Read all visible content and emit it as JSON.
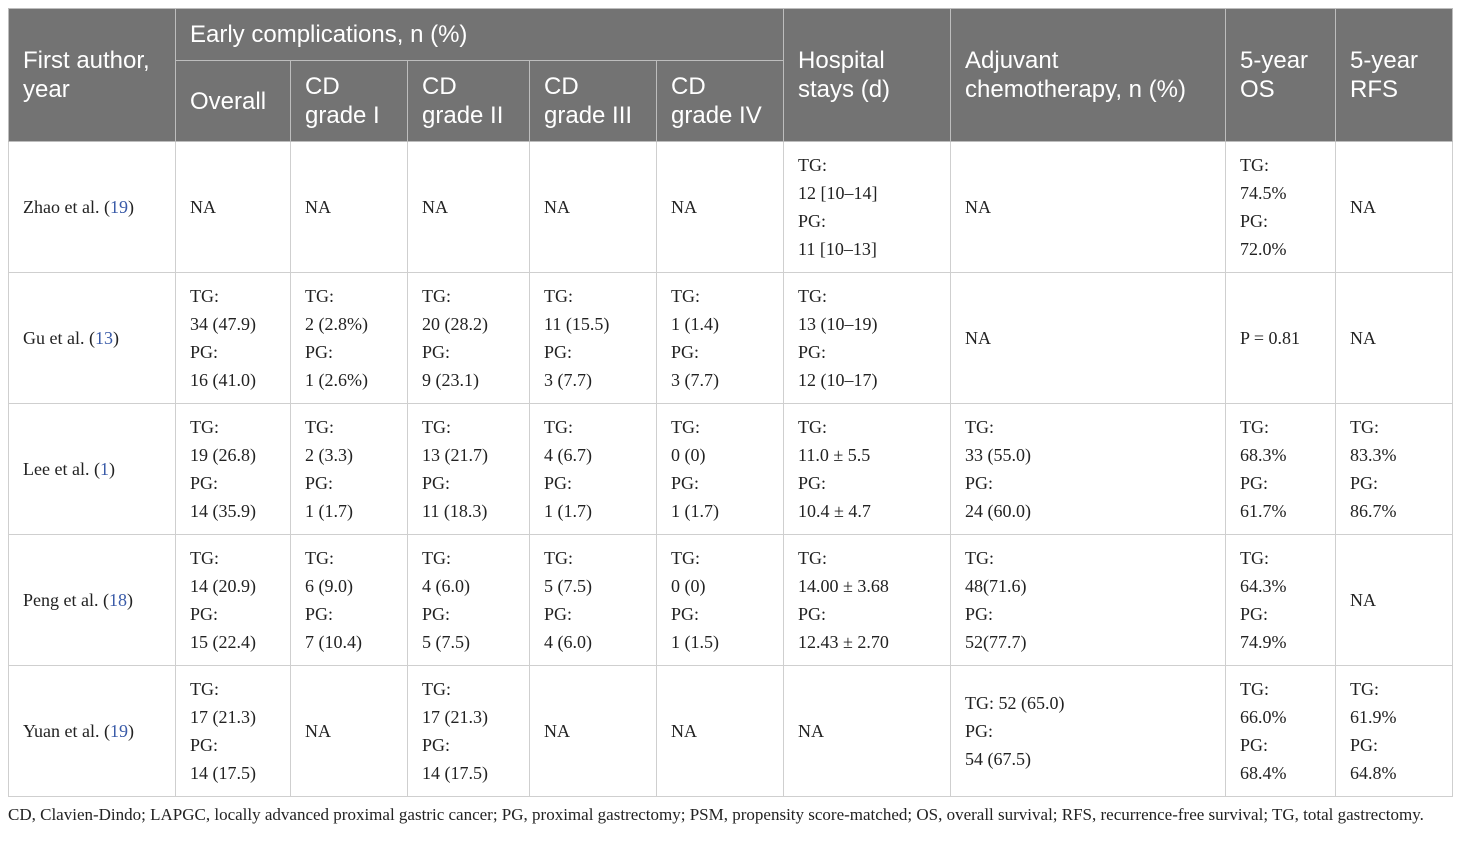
{
  "table": {
    "header": {
      "row1": [
        "First author, year",
        "Early complications, n (%)",
        "Hospital stays (d)",
        "Adjuvant chemotherapy, n (%)",
        "5-year OS",
        "5-year RFS"
      ],
      "row2": [
        "Overall",
        "CD grade I",
        "CD grade II",
        "CD grade III",
        "CD grade IV"
      ]
    },
    "rows": [
      {
        "author": "Zhao et al. (19)",
        "cells": [
          [
            "NA"
          ],
          [
            "NA"
          ],
          [
            "NA"
          ],
          [
            "NA"
          ],
          [
            "NA"
          ],
          [
            "TG:",
            "12 [10–14]",
            "PG:",
            "11 [10–13]"
          ],
          [
            "NA"
          ],
          [
            "TG:",
            "74.5%",
            "PG:",
            "72.0%"
          ],
          [
            "NA"
          ]
        ]
      },
      {
        "author": "Gu et al. (13)",
        "cells": [
          [
            "TG:",
            "34 (47.9)",
            "PG:",
            "16 (41.0)"
          ],
          [
            "TG:",
            "2 (2.8%)",
            "PG:",
            "1 (2.6%)"
          ],
          [
            "TG:",
            "20 (28.2)",
            "PG:",
            "9 (23.1)"
          ],
          [
            "TG:",
            "11 (15.5)",
            "PG:",
            "3 (7.7)"
          ],
          [
            "TG:",
            "1 (1.4)",
            "PG:",
            "3 (7.7)"
          ],
          [
            "TG:",
            "13 (10–19)",
            "PG:",
            "12 (10–17)"
          ],
          [
            "NA"
          ],
          [
            "P = 0.81"
          ],
          [
            "NA"
          ]
        ]
      },
      {
        "author": "Lee et al. (1)",
        "cells": [
          [
            "TG:",
            "19 (26.8)",
            "PG:",
            "14 (35.9)"
          ],
          [
            "TG:",
            "2 (3.3)",
            "PG:",
            "1 (1.7)"
          ],
          [
            "TG:",
            "13 (21.7)",
            "PG:",
            "11 (18.3)"
          ],
          [
            "TG:",
            "4 (6.7)",
            "PG:",
            "1 (1.7)"
          ],
          [
            "TG:",
            "0 (0)",
            "PG:",
            "1 (1.7)"
          ],
          [
            "TG:",
            "11.0 ± 5.5",
            "PG:",
            "10.4 ± 4.7"
          ],
          [
            "TG:",
            "33 (55.0)",
            "PG:",
            "24 (60.0)"
          ],
          [
            "TG:",
            "68.3%",
            "PG:",
            "61.7%"
          ],
          [
            "TG:",
            "83.3%",
            "PG:",
            "86.7%"
          ]
        ]
      },
      {
        "author": "Peng et al. (18)",
        "cells": [
          [
            "TG:",
            "14 (20.9)",
            "PG:",
            "15 (22.4)"
          ],
          [
            "TG:",
            "6 (9.0)",
            "PG:",
            "7 (10.4)"
          ],
          [
            "TG:",
            "4 (6.0)",
            "PG:",
            "5 (7.5)"
          ],
          [
            "TG:",
            "5 (7.5)",
            "PG:",
            "4 (6.0)"
          ],
          [
            "TG:",
            "0 (0)",
            "PG:",
            "1 (1.5)"
          ],
          [
            "TG:",
            "14.00 ± 3.68",
            "PG:",
            "12.43 ± 2.70"
          ],
          [
            "TG:",
            "48(71.6)",
            "PG:",
            "52(77.7)"
          ],
          [
            "TG:",
            "64.3%",
            "PG:",
            "74.9%"
          ],
          [
            "NA"
          ]
        ]
      },
      {
        "author": "Yuan et al. (19)",
        "cells": [
          [
            "TG:",
            "17 (21.3)",
            "PG:",
            "14 (17.5)"
          ],
          [
            "NA"
          ],
          [
            "TG:",
            "17 (21.3)",
            "PG:",
            "14 (17.5)"
          ],
          [
            "NA"
          ],
          [
            "NA"
          ],
          [
            "NA"
          ],
          [
            "TG: 52 (65.0)",
            "PG:",
            "54 (67.5)"
          ],
          [
            "TG:",
            "66.0%",
            "PG:",
            "68.4%"
          ],
          [
            "TG:",
            "61.9%",
            "PG:",
            "64.8%"
          ]
        ]
      }
    ],
    "footnote": "CD, Clavien-Dindo; LAPGC, locally advanced proximal gastric cancer; PG, proximal gastrectomy; PSM, propensity score-matched; OS, overall survival; RFS, recurrence-free survival; TG, total gastrectomy."
  }
}
